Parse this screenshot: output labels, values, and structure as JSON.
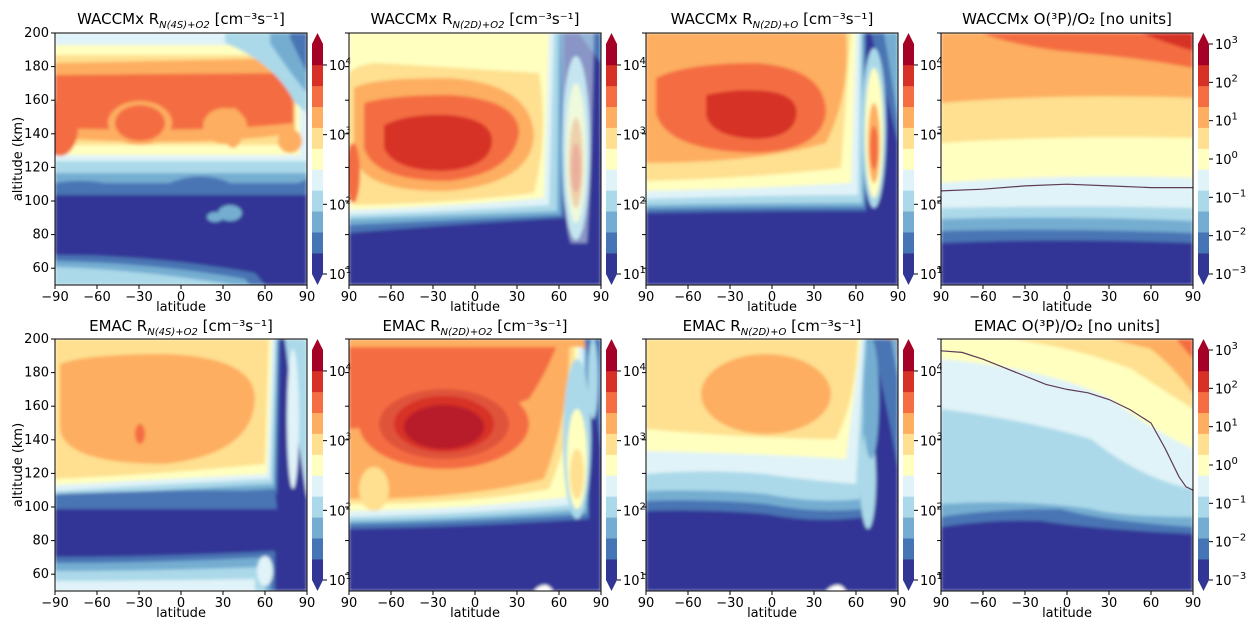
{
  "chart_data": [
    {
      "type": "heatmap",
      "model": "WACCMx",
      "quantity": "R",
      "sub": "N(4S)+O2",
      "unit": "[cm⁻³s⁻¹]",
      "xlabel": "latitude",
      "ylabel": "altitude (km)",
      "xlim": [
        -90,
        90
      ],
      "ylim": [
        50,
        200
      ],
      "xticks": [
        "−90",
        "−60",
        "−30",
        "0",
        "30",
        "60",
        "90"
      ],
      "yticks": [
        "60",
        "80",
        "100",
        "120",
        "140",
        "160",
        "180",
        "200"
      ],
      "colorbar": {
        "scale": "log",
        "range": [
          "1e1",
          "2e4"
        ],
        "ticks": [
          {
            "base": "10",
            "exp": "1"
          },
          {
            "base": "10",
            "exp": "2"
          },
          {
            "base": "10",
            "exp": "3"
          },
          {
            "base": "10",
            "exp": "4"
          }
        ]
      }
    },
    {
      "type": "heatmap",
      "model": "WACCMx",
      "quantity": "R",
      "sub": "N(2D)+O2",
      "unit": "[cm⁻³s⁻¹]",
      "xlabel": "latitude",
      "ylabel": "",
      "xlim": [
        -90,
        90
      ],
      "ylim": [
        50,
        200
      ],
      "xticks": [
        "90",
        "−60",
        "−30",
        "0",
        "30",
        "60",
        "90"
      ],
      "yticks": [],
      "colorbar": {
        "scale": "log",
        "range": [
          "1e1",
          "2e4"
        ],
        "ticks": [
          {
            "base": "10",
            "exp": "1"
          },
          {
            "base": "10",
            "exp": "2"
          },
          {
            "base": "10",
            "exp": "3"
          },
          {
            "base": "10",
            "exp": "4"
          }
        ]
      }
    },
    {
      "type": "heatmap",
      "model": "WACCMx",
      "quantity": "R",
      "sub": "N(2D)+O",
      "unit": "[cm⁻³s⁻¹]",
      "xlabel": "latitude",
      "ylabel": "",
      "xlim": [
        -90,
        90
      ],
      "ylim": [
        50,
        200
      ],
      "xticks": [
        "90",
        "−60",
        "−30",
        "0",
        "30",
        "60",
        "90"
      ],
      "yticks": [],
      "colorbar": {
        "scale": "log",
        "range": [
          "1e1",
          "2e4"
        ],
        "ticks": [
          {
            "base": "10",
            "exp": "1"
          },
          {
            "base": "10",
            "exp": "2"
          },
          {
            "base": "10",
            "exp": "3"
          },
          {
            "base": "10",
            "exp": "4"
          }
        ]
      }
    },
    {
      "type": "heatmap",
      "model": "WACCMx",
      "quantity": "O(³P)/O₂",
      "sub": "",
      "unit": "[no units]",
      "xlabel": "latitude",
      "ylabel": "",
      "xlim": [
        -90,
        90
      ],
      "ylim": [
        50,
        200
      ],
      "xticks": [
        "90",
        "−60",
        "−30",
        "0",
        "30",
        "60",
        "90"
      ],
      "yticks": [],
      "contour_level": 1,
      "contour": {
        "lat": [
          -90,
          -60,
          -30,
          0,
          30,
          60,
          90
        ],
        "alt": [
          106,
          107,
          109,
          110,
          109,
          108,
          108
        ]
      },
      "colorbar": {
        "scale": "log",
        "range": [
          "1e-3",
          "1e3"
        ],
        "ticks": [
          {
            "base": "10",
            "exp": "3"
          },
          {
            "base": "10",
            "exp": "2"
          },
          {
            "base": "10",
            "exp": "1"
          },
          {
            "base": "10",
            "exp": "0"
          },
          {
            "base": "10",
            "exp": "−1"
          },
          {
            "base": "10",
            "exp": "−2"
          },
          {
            "base": "10",
            "exp": "−3"
          }
        ]
      }
    },
    {
      "type": "heatmap",
      "model": "EMAC",
      "quantity": "R",
      "sub": "N(4S)+O2",
      "unit": "[cm⁻³s⁻¹]",
      "xlabel": "latitude",
      "ylabel": "altitude (km)",
      "xlim": [
        -90,
        90
      ],
      "ylim": [
        50,
        200
      ],
      "xticks": [
        "−90",
        "−60",
        "−30",
        "0",
        "30",
        "60",
        "90"
      ],
      "yticks": [
        "60",
        "80",
        "100",
        "120",
        "140",
        "160",
        "180",
        "200"
      ],
      "colorbar": {
        "scale": "log",
        "range": [
          "1e1",
          "2e4"
        ],
        "ticks": [
          {
            "base": "10",
            "exp": "1"
          },
          {
            "base": "10",
            "exp": "2"
          },
          {
            "base": "10",
            "exp": "3"
          },
          {
            "base": "10",
            "exp": "4"
          }
        ]
      }
    },
    {
      "type": "heatmap",
      "model": "EMAC",
      "quantity": "R",
      "sub": "N(2D)+O2",
      "unit": "[cm⁻³s⁻¹]",
      "xlabel": "latitude",
      "ylabel": "",
      "xlim": [
        -90,
        90
      ],
      "ylim": [
        50,
        200
      ],
      "xticks": [
        "90",
        "−60",
        "−30",
        "0",
        "30",
        "60",
        "90"
      ],
      "yticks": [],
      "colorbar": {
        "scale": "log",
        "range": [
          "1e1",
          "2e4"
        ],
        "ticks": [
          {
            "base": "10",
            "exp": "1"
          },
          {
            "base": "10",
            "exp": "2"
          },
          {
            "base": "10",
            "exp": "3"
          },
          {
            "base": "10",
            "exp": "4"
          }
        ]
      }
    },
    {
      "type": "heatmap",
      "model": "EMAC",
      "quantity": "R",
      "sub": "N(2D)+O",
      "unit": "[cm⁻³s⁻¹]",
      "xlabel": "latitude",
      "ylabel": "",
      "xlim": [
        -90,
        90
      ],
      "ylim": [
        50,
        200
      ],
      "xticks": [
        "90",
        "−60",
        "−30",
        "0",
        "30",
        "60",
        "90"
      ],
      "yticks": [],
      "colorbar": {
        "scale": "log",
        "range": [
          "1e1",
          "2e4"
        ],
        "ticks": [
          {
            "base": "10",
            "exp": "1"
          },
          {
            "base": "10",
            "exp": "2"
          },
          {
            "base": "10",
            "exp": "3"
          },
          {
            "base": "10",
            "exp": "4"
          }
        ]
      }
    },
    {
      "type": "heatmap",
      "model": "EMAC",
      "quantity": "O(³P)/O₂",
      "sub": "",
      "unit": "[no units]",
      "xlabel": "latitude",
      "ylabel": "",
      "xlim": [
        -90,
        90
      ],
      "ylim": [
        50,
        200
      ],
      "xticks": [
        "90",
        "−60",
        "−30",
        "0",
        "30",
        "60",
        "90"
      ],
      "yticks": [],
      "contour_level": 1,
      "contour": {
        "lat": [
          -90,
          -75,
          -60,
          -45,
          -30,
          -15,
          0,
          15,
          30,
          45,
          60,
          70,
          80,
          85,
          90
        ],
        "alt": [
          193,
          192,
          188,
          183,
          178,
          173,
          170,
          168,
          164,
          158,
          150,
          135,
          118,
          112,
          110
        ]
      },
      "colorbar": {
        "scale": "log",
        "range": [
          "1e-3",
          "1e3"
        ],
        "ticks": [
          {
            "base": "10",
            "exp": "3"
          },
          {
            "base": "10",
            "exp": "2"
          },
          {
            "base": "10",
            "exp": "1"
          },
          {
            "base": "10",
            "exp": "0"
          },
          {
            "base": "10",
            "exp": "−1"
          },
          {
            "base": "10",
            "exp": "−2"
          },
          {
            "base": "10",
            "exp": "−3"
          }
        ]
      }
    }
  ]
}
